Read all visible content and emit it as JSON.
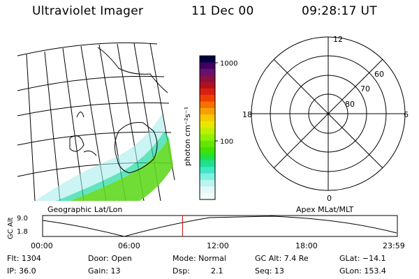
{
  "header": {
    "instrument": "Ultraviolet Imager",
    "date": "11 Dec 00",
    "time": "09:28:17 UT"
  },
  "colorbar": {
    "unit_label": "photon cm⁻²s⁻¹",
    "tick_1000": "1000",
    "tick_100": "100",
    "colors": [
      "#000040",
      "#400060",
      "#6a1070",
      "#8a1040",
      "#b01020",
      "#d82010",
      "#f04000",
      "#f87000",
      "#f8a000",
      "#f8c800",
      "#e8e800",
      "#c0f000",
      "#90f000",
      "#60e800",
      "#40e000",
      "#20e040",
      "#20e090",
      "#40e8c8",
      "#80f0e0",
      "#b8f4f0",
      "#e0f8f8",
      "#f4fcfc"
    ]
  },
  "polar": {
    "mlt_12": "12",
    "mlt_18": "18",
    "mlt_6": "6",
    "mlt_0": "0",
    "mlat_60": "60",
    "mlat_70": "70",
    "mlat_80": "80"
  },
  "labels": {
    "geo": "Geographic Lat/Lon",
    "apex": "Apex MLat/MLT"
  },
  "altplot": {
    "axis_label": "GC Alt",
    "y_top": "9.0",
    "y_bottom": "1.8",
    "x_ticks": [
      "00:00",
      "06:00",
      "12:00",
      "18:00",
      "23:59"
    ],
    "current_time_hours": 9.47
  },
  "status": {
    "flt": "Flt: 1304",
    "ip": "IP: 36.0",
    "door": "Door: Open",
    "gain": "Gain: 13",
    "mode": "Mode: Normal",
    "dsp_label": "Dsp:",
    "dsp_value": "2.1",
    "gcalt": "GC Alt: 7.4 Re",
    "seq": "Seq: 13",
    "glat": "GLat: −14.1",
    "glon": "GLon: 153.4"
  }
}
